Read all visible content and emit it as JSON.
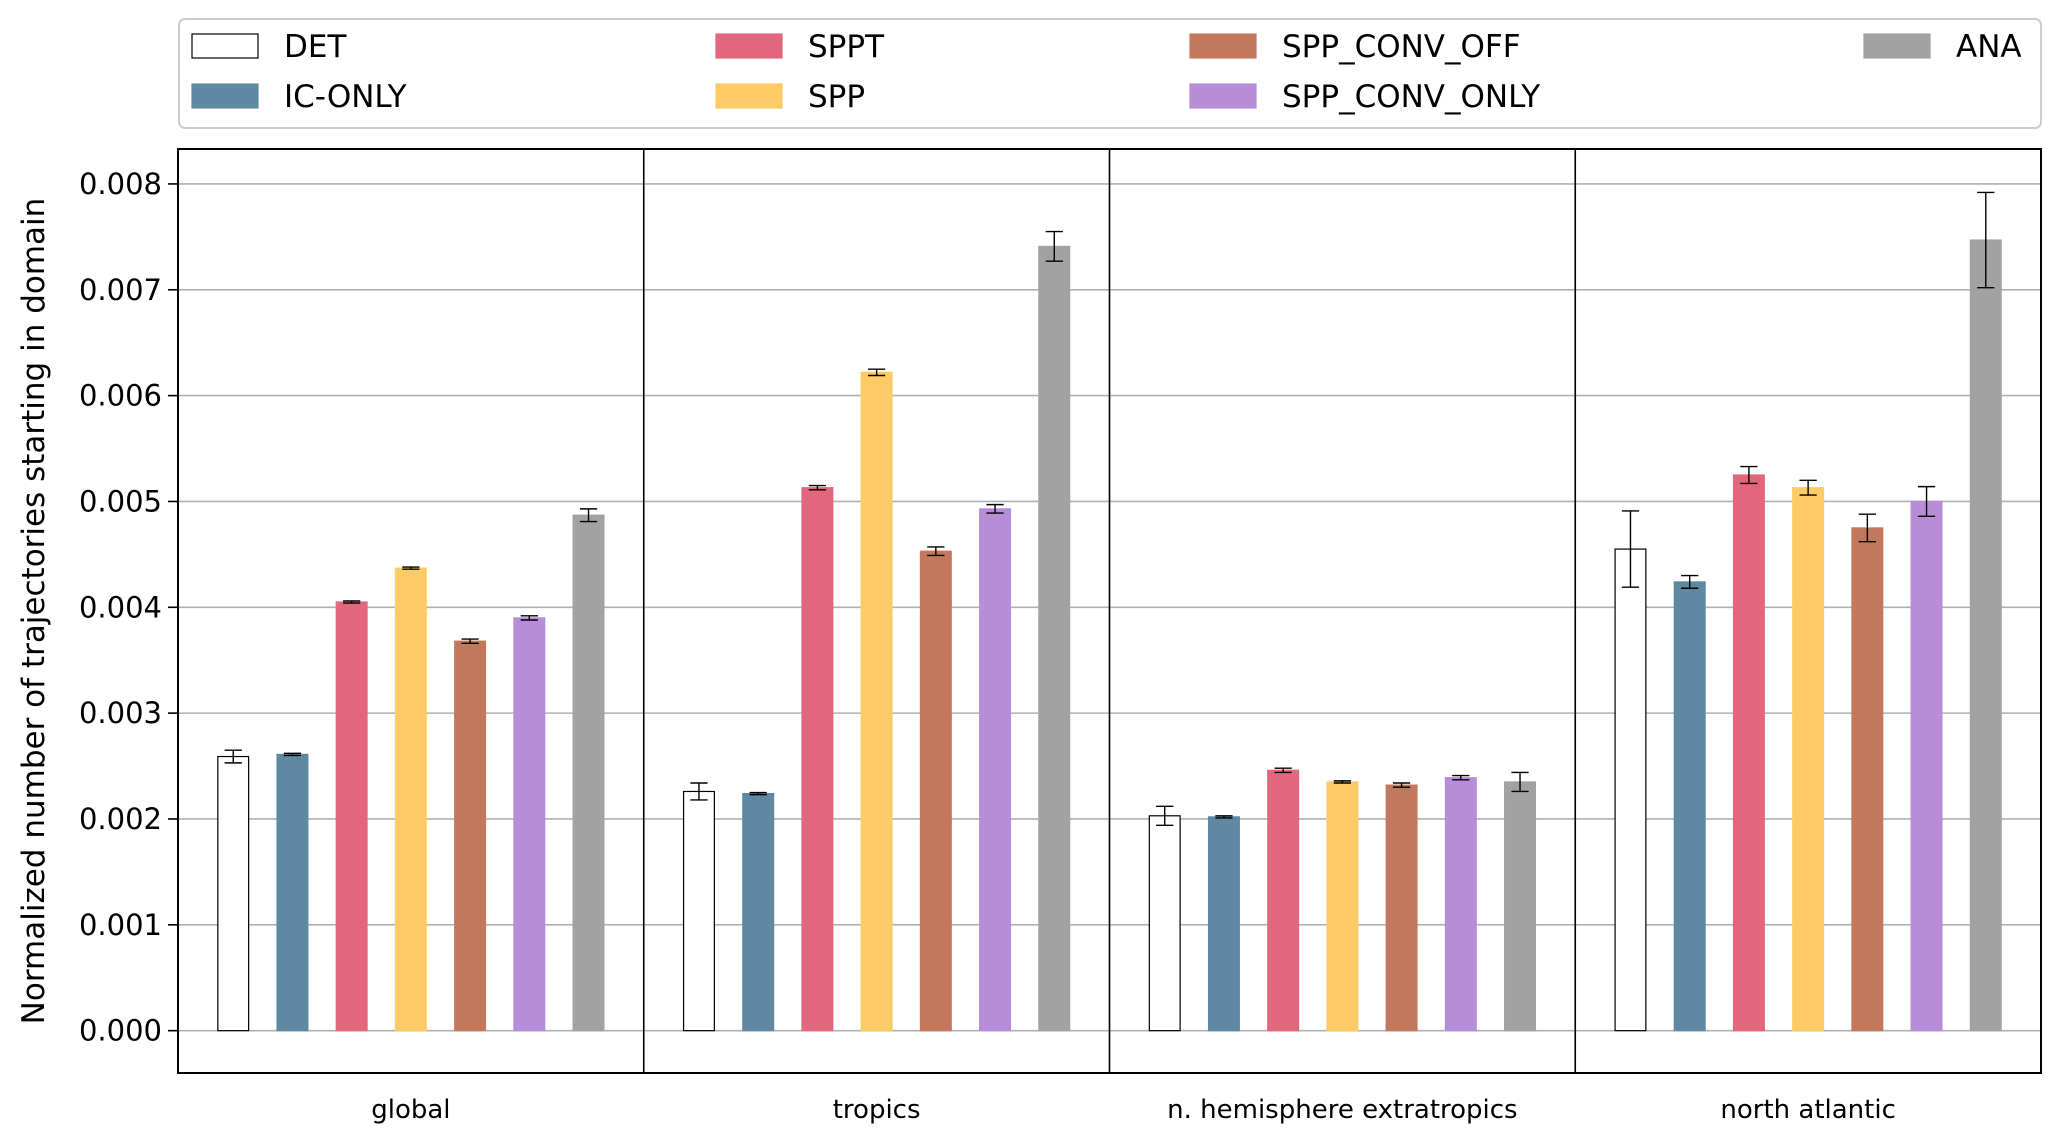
{
  "chart_data": {
    "type": "bar",
    "ylabel": "Normalized number of trajectories starting in domain",
    "xlabel": "",
    "ylim": [
      -0.0004,
      0.00833
    ],
    "yticks": [
      "0.000",
      "0.001",
      "0.002",
      "0.003",
      "0.004",
      "0.005",
      "0.006",
      "0.007",
      "0.008"
    ],
    "grid": "horizontal",
    "legend_position": "top",
    "categories": [
      "global",
      "tropics",
      "n. hemisphere extratropics",
      "north atlantic"
    ],
    "series": [
      {
        "name": "DET",
        "color": "#ffffff",
        "edge": "#000000",
        "values": [
          0.00259,
          0.00226,
          0.00203,
          0.00455
        ],
        "errors": [
          6e-05,
          8e-05,
          9e-05,
          0.00036
        ]
      },
      {
        "name": "IC-ONLY",
        "color": "#5f89a3",
        "edge": "#5f89a3",
        "values": [
          0.00261,
          0.00224,
          0.00202,
          0.00424
        ],
        "errors": [
          1e-05,
          1e-05,
          1e-05,
          6e-05
        ]
      },
      {
        "name": "SPPT",
        "color": "#e3677c",
        "edge": "#e3677c",
        "values": [
          0.00405,
          0.00513,
          0.00246,
          0.00525
        ],
        "errors": [
          1e-05,
          2e-05,
          2e-05,
          8e-05
        ]
      },
      {
        "name": "SPP",
        "color": "#fdcb65",
        "edge": "#fdcb65",
        "values": [
          0.00437,
          0.00622,
          0.00235,
          0.00513
        ],
        "errors": [
          1e-05,
          3e-05,
          1e-05,
          7e-05
        ]
      },
      {
        "name": "SPP_CONV_OFF",
        "color": "#c3785d",
        "edge": "#c3785d",
        "values": [
          0.00368,
          0.00453,
          0.00232,
          0.00475
        ],
        "errors": [
          2e-05,
          4e-05,
          2e-05,
          0.00013
        ]
      },
      {
        "name": "SPP_CONV_ONLY",
        "color": "#b88dd8",
        "edge": "#b88dd8",
        "values": [
          0.0039,
          0.00493,
          0.00239,
          0.005
        ],
        "errors": [
          2e-05,
          4e-05,
          2e-05,
          0.00014
        ]
      },
      {
        "name": "ANA",
        "color": "#a2a2a2",
        "edge": "#a2a2a2",
        "values": [
          0.00487,
          0.00741,
          0.00235,
          0.00747
        ],
        "errors": [
          6e-05,
          0.00014,
          9e-05,
          0.00045
        ]
      }
    ]
  }
}
